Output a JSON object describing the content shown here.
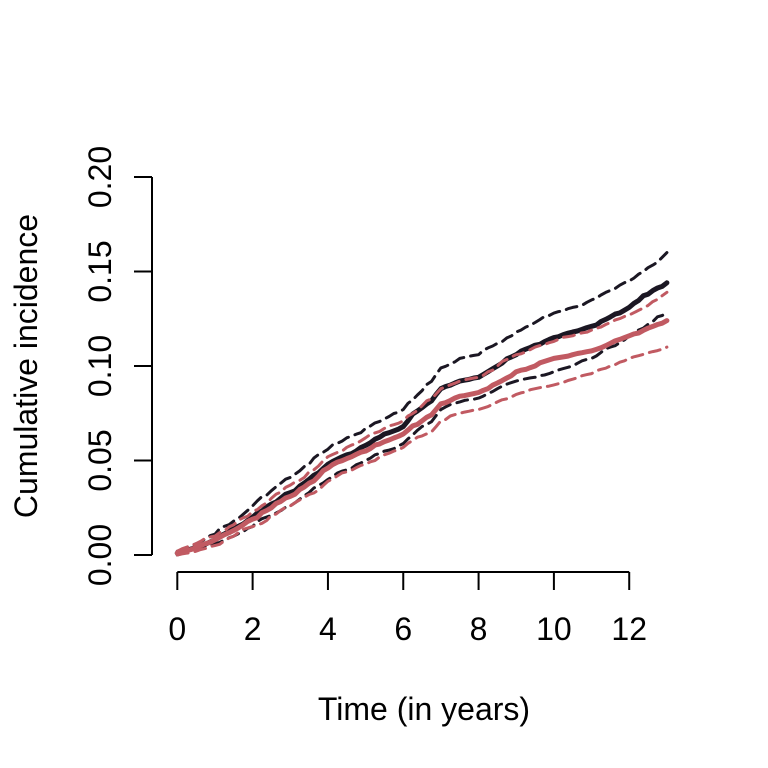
{
  "figure": {
    "background": "#ffffff",
    "axis_color": "#000000"
  },
  "chart_data": {
    "type": "line",
    "title": "",
    "xlabel": "Time (in years)",
    "ylabel": "Cumulative incidence",
    "xlim": [
      0,
      13
    ],
    "ylim": [
      0.0,
      0.2
    ],
    "grid": false,
    "legend": null,
    "x_ticks": [
      {
        "label": "0",
        "value": 0
      },
      {
        "label": "2",
        "value": 2
      },
      {
        "label": "4",
        "value": 4
      },
      {
        "label": "6",
        "value": 6
      },
      {
        "label": "8",
        "value": 8
      },
      {
        "label": "10",
        "value": 10
      },
      {
        "label": "12",
        "value": 12
      }
    ],
    "y_ticks": [
      {
        "label": "0.00",
        "value": 0.0
      },
      {
        "label": "0.05",
        "value": 0.05
      },
      {
        "label": "0.10",
        "value": 0.1
      },
      {
        "label": "0.15",
        "value": 0.15
      },
      {
        "label": "0.20",
        "value": 0.2
      }
    ],
    "x": [
      0,
      0.5,
      1,
      1.5,
      2,
      2.5,
      3,
      3.5,
      4,
      4.5,
      5,
      5.5,
      6,
      6.5,
      7,
      7.5,
      8,
      8.5,
      9,
      9.5,
      10,
      10.5,
      11,
      11.5,
      12,
      12.5,
      13
    ],
    "series": [
      {
        "name": "group-1-cumulative-incidence",
        "role": "estimate",
        "color": "#1b1723",
        "line": "solid",
        "width": 5,
        "values": [
          0.001,
          0.004,
          0.008,
          0.014,
          0.02,
          0.027,
          0.033,
          0.04,
          0.048,
          0.053,
          0.058,
          0.064,
          0.068,
          0.078,
          0.088,
          0.092,
          0.094,
          0.1,
          0.106,
          0.111,
          0.115,
          0.118,
          0.121,
          0.126,
          0.131,
          0.138,
          0.144
        ]
      },
      {
        "name": "group-1-upper-ci",
        "role": "upper-ci",
        "color": "#1b1723",
        "line": "dashed",
        "width": 3,
        "values": [
          0.002,
          0.006,
          0.011,
          0.018,
          0.026,
          0.034,
          0.041,
          0.048,
          0.056,
          0.062,
          0.067,
          0.072,
          0.077,
          0.087,
          0.099,
          0.104,
          0.106,
          0.112,
          0.118,
          0.123,
          0.128,
          0.131,
          0.135,
          0.14,
          0.145,
          0.152,
          0.16
        ]
      },
      {
        "name": "group-1-lower-ci",
        "role": "lower-ci",
        "color": "#1b1723",
        "line": "dashed",
        "width": 3,
        "values": [
          0.0,
          0.003,
          0.006,
          0.01,
          0.015,
          0.021,
          0.026,
          0.033,
          0.04,
          0.045,
          0.05,
          0.055,
          0.059,
          0.068,
          0.077,
          0.081,
          0.083,
          0.088,
          0.092,
          0.094,
          0.097,
          0.1,
          0.104,
          0.11,
          0.116,
          0.122,
          0.128
        ]
      },
      {
        "name": "group-2-cumulative-incidence",
        "role": "estimate",
        "color": "#c15a62",
        "line": "solid",
        "width": 5,
        "values": [
          0.001,
          0.004,
          0.008,
          0.013,
          0.019,
          0.025,
          0.031,
          0.038,
          0.046,
          0.051,
          0.055,
          0.06,
          0.064,
          0.071,
          0.08,
          0.084,
          0.086,
          0.091,
          0.097,
          0.1,
          0.104,
          0.106,
          0.108,
          0.112,
          0.116,
          0.12,
          0.124
        ]
      },
      {
        "name": "group-2-upper-ci",
        "role": "upper-ci",
        "color": "#c15a62",
        "line": "dashed",
        "width": 3,
        "values": [
          0.002,
          0.006,
          0.01,
          0.016,
          0.023,
          0.03,
          0.037,
          0.044,
          0.052,
          0.057,
          0.062,
          0.067,
          0.071,
          0.079,
          0.088,
          0.092,
          0.094,
          0.1,
          0.106,
          0.11,
          0.113,
          0.116,
          0.119,
          0.123,
          0.127,
          0.132,
          0.139
        ]
      },
      {
        "name": "group-2-lower-ci",
        "role": "lower-ci",
        "color": "#c15a62",
        "line": "dashed",
        "width": 3,
        "values": [
          0.0,
          0.002,
          0.005,
          0.01,
          0.015,
          0.021,
          0.026,
          0.032,
          0.039,
          0.044,
          0.048,
          0.053,
          0.057,
          0.063,
          0.071,
          0.075,
          0.077,
          0.081,
          0.085,
          0.088,
          0.09,
          0.093,
          0.096,
          0.1,
          0.104,
          0.107,
          0.11
        ]
      }
    ]
  }
}
